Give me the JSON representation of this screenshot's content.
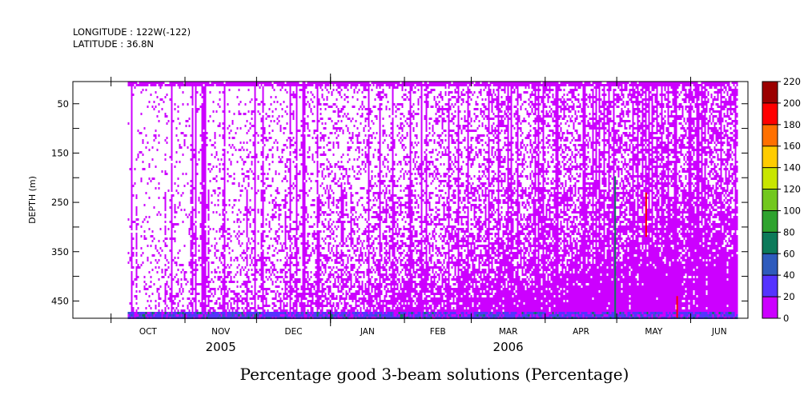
{
  "header": {
    "longitude": "LONGITUDE : 122W(-122)",
    "latitude": "LATITUDE : 36.8N"
  },
  "chart_data": {
    "type": "heatmap",
    "title": "Percentage good 3-beam solutions (Percentage)",
    "ylabel": "DEPTH (m)",
    "xlabel": "",
    "y_axis": {
      "ticks": [
        50,
        150,
        250,
        350,
        450
      ],
      "minor_ticks": [
        100,
        200,
        300,
        400
      ],
      "range": [
        5,
        485
      ],
      "direction": "down",
      "units": "m"
    },
    "x_axis": {
      "months": [
        "OCT",
        "NOV",
        "DEC",
        "JAN",
        "FEB",
        "MAR",
        "APR",
        "MAY",
        "JUN"
      ],
      "years": [
        {
          "label": "2005",
          "under": "NOV"
        },
        {
          "label": "2006",
          "under": "MAR"
        }
      ],
      "range": [
        "2005-09-15",
        "2006-06-25"
      ]
    },
    "colorbar": {
      "ticks": [
        0,
        20,
        40,
        60,
        80,
        100,
        120,
        140,
        160,
        180,
        200,
        220
      ],
      "colors": [
        "#cc00ff",
        "#5533ff",
        "#2e5bbd",
        "#0c7a5a",
        "#2ea32e",
        "#72c81e",
        "#c8e600",
        "#ffcc00",
        "#ff7000",
        "#ff0000",
        "#9b0000"
      ]
    },
    "data_start": "2005-10-08",
    "data_end": "2006-06-21",
    "description_values": {
      "dominant_value": 0,
      "near_bottom_values": [
        20,
        40,
        60
      ],
      "spikes": [
        {
          "date": "2006-04-30",
          "depth_top": 197,
          "depth_bottom": 485,
          "value": 60
        },
        {
          "date": "2006-05-13",
          "depth_top": 230,
          "depth_bottom": 320,
          "value": 180
        },
        {
          "date": "2006-05-26",
          "depth_top": 440,
          "depth_bottom": 485,
          "value": 180
        }
      ]
    }
  }
}
